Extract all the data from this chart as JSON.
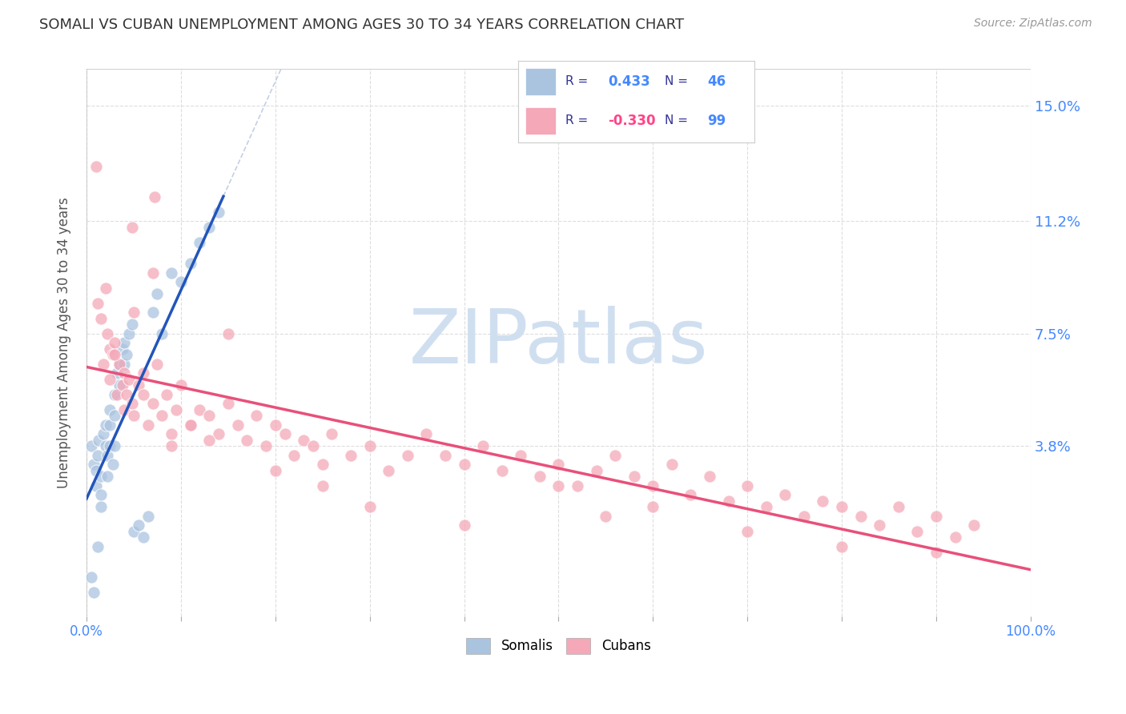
{
  "title": "SOMALI VS CUBAN UNEMPLOYMENT AMONG AGES 30 TO 34 YEARS CORRELATION CHART",
  "source": "Source: ZipAtlas.com",
  "ylabel": "Unemployment Among Ages 30 to 34 years",
  "xlim": [
    0.0,
    1.0
  ],
  "ylim": [
    -0.018,
    0.162
  ],
  "ytick_positions": [
    0.038,
    0.075,
    0.112,
    0.15
  ],
  "ytick_labels": [
    "3.8%",
    "7.5%",
    "11.2%",
    "15.0%"
  ],
  "somali_color": "#aac4e0",
  "cuban_color": "#f4a8b8",
  "background_color": "#ffffff",
  "grid_color": "#dddddd",
  "somali_line_color": "#2255bb",
  "cuban_line_color": "#e8507a",
  "diag_line_color": "#aabbdd",
  "watermark": "ZIPatlas",
  "watermark_color": "#d0dff0",
  "somali_R": "0.433",
  "somali_N": "46",
  "cuban_R": "-0.330",
  "cuban_N": "99",
  "legend_label_color": "#333399",
  "legend_somali_val_color": "#4488ff",
  "legend_cuban_val_color": "#ff4488",
  "legend_n_color": "#4488ff",
  "ytick_label_color": "#4488ff"
}
